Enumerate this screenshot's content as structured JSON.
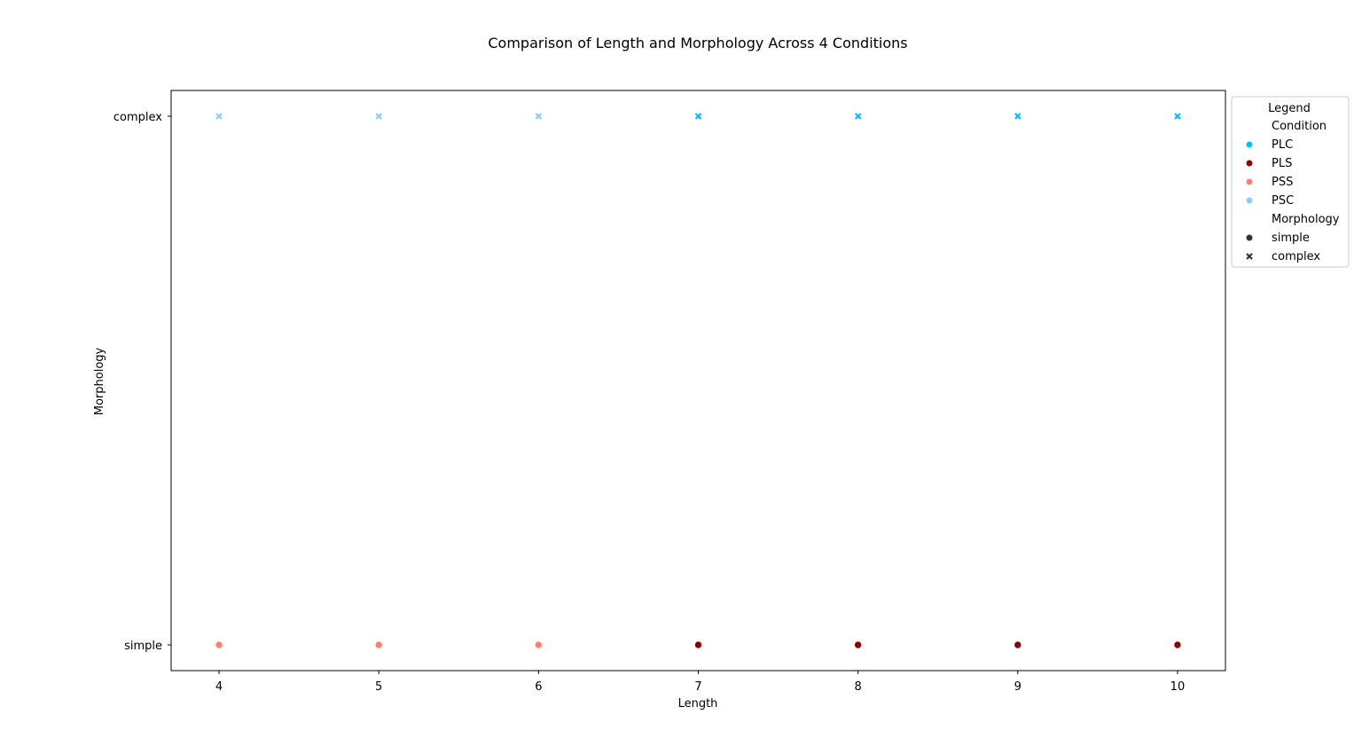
{
  "chart_data": {
    "type": "scatter",
    "title": "Comparison of Length and Morphology Across 4 Conditions",
    "xlabel": "Length",
    "ylabel": "Morphology",
    "x_ticks": [
      4,
      5,
      6,
      7,
      8,
      9,
      10
    ],
    "y_categories": [
      "simple",
      "complex"
    ],
    "xlim": [
      3.7,
      10.3
    ],
    "grid": false,
    "legend": {
      "title": "Legend",
      "placement": "outside-right-top",
      "hue_title": "Condition",
      "hue_entries": [
        {
          "label": "PLC",
          "color": "#00bfff"
        },
        {
          "label": "PLS",
          "color": "#8b0000"
        },
        {
          "label": "PSS",
          "color": "#fa8072"
        },
        {
          "label": "PSC",
          "color": "#87cefa"
        }
      ],
      "style_title": "Morphology",
      "style_entries": [
        {
          "label": "simple",
          "marker": "circle",
          "color": "#333333"
        },
        {
          "label": "complex",
          "marker": "x",
          "color": "#333333"
        }
      ]
    },
    "series": [
      {
        "name": "PLC",
        "color": "#00bfff",
        "marker": "x",
        "points": [
          {
            "x": 7,
            "y": "complex"
          },
          {
            "x": 8,
            "y": "complex"
          },
          {
            "x": 9,
            "y": "complex"
          },
          {
            "x": 10,
            "y": "complex"
          }
        ]
      },
      {
        "name": "PLS",
        "color": "#8b0000",
        "marker": "circle",
        "points": [
          {
            "x": 7,
            "y": "simple"
          },
          {
            "x": 8,
            "y": "simple"
          },
          {
            "x": 9,
            "y": "simple"
          },
          {
            "x": 10,
            "y": "simple"
          }
        ]
      },
      {
        "name": "PSS",
        "color": "#fa8072",
        "marker": "circle",
        "points": [
          {
            "x": 4,
            "y": "simple"
          },
          {
            "x": 5,
            "y": "simple"
          },
          {
            "x": 6,
            "y": "simple"
          }
        ]
      },
      {
        "name": "PSC",
        "color": "#87cefa",
        "marker": "x",
        "points": [
          {
            "x": 4,
            "y": "complex"
          },
          {
            "x": 5,
            "y": "complex"
          },
          {
            "x": 6,
            "y": "complex"
          }
        ]
      }
    ]
  }
}
